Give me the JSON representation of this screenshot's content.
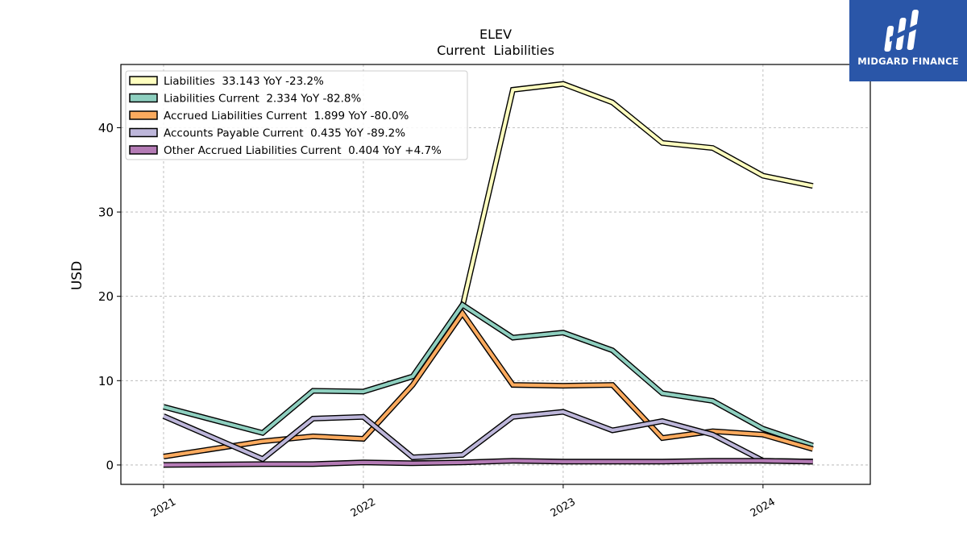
{
  "chart_data": {
    "type": "line",
    "title": "ELEV",
    "subtitle": "Current  Liabilities",
    "xlabel": "",
    "ylabel": "USD",
    "xlim": [
      "2020-10-15",
      "2024-07-15"
    ],
    "ylim": [
      -2.3,
      47.5
    ],
    "x_ticks": [
      "2021",
      "2022",
      "2023",
      "2024"
    ],
    "y_ticks": [
      0,
      10,
      20,
      30,
      40
    ],
    "grid": true,
    "legend_position": "top-left",
    "x": [
      "2021-01-01",
      "2021-07-01",
      "2021-10-01",
      "2022-01-01",
      "2022-04-01",
      "2022-07-01",
      "2022-10-01",
      "2023-01-01",
      "2023-04-01",
      "2023-07-01",
      "2023-10-01",
      "2024-01-01",
      "2024-04-01"
    ],
    "series": [
      {
        "name": "Liabilities",
        "legend_label": "Liabilities  33.143 YoY -23.2%",
        "color": "#ffffbf",
        "values": [
          null,
          null,
          null,
          null,
          null,
          18.8,
          44.5,
          45.2,
          43.0,
          38.2,
          37.6,
          34.3,
          33.1
        ]
      },
      {
        "name": "Liabilities Current",
        "legend_label": "Liabilities Current  2.334 YoY -82.8%",
        "color": "#8ecfbf",
        "values": [
          6.9,
          3.8,
          8.8,
          8.7,
          10.5,
          19.0,
          15.1,
          15.7,
          13.6,
          8.5,
          7.6,
          4.3,
          2.3
        ]
      },
      {
        "name": "Accrued Liabilities Current",
        "legend_label": "Accrued Liabilities Current  1.899 YoY -80.0%",
        "color": "#fbaa5e",
        "values": [
          1.0,
          2.8,
          3.4,
          3.1,
          9.5,
          18.0,
          9.5,
          9.4,
          9.5,
          3.2,
          4.0,
          3.6,
          1.9
        ]
      },
      {
        "name": "Accounts Payable Current",
        "legend_label": "Accounts Payable Current  0.435 YoY -89.2%",
        "color": "#bdb6da",
        "values": [
          5.8,
          0.7,
          5.5,
          5.7,
          0.9,
          1.2,
          5.7,
          6.3,
          4.1,
          5.2,
          3.6,
          0.5,
          0.4
        ]
      },
      {
        "name": "Other Accrued Liabilities Current",
        "legend_label": "Other Accrued Liabilities Current  0.404 YoY +4.7%",
        "color": "#b47bb5",
        "values": [
          0.0,
          0.1,
          0.1,
          0.3,
          0.2,
          0.3,
          0.5,
          0.4,
          0.4,
          0.4,
          0.5,
          0.5,
          0.4
        ]
      }
    ]
  },
  "logo": {
    "text": "MIDGARD FINANCE",
    "icon": "midgard-finance-logo-icon",
    "color": "#2a56a8"
  }
}
